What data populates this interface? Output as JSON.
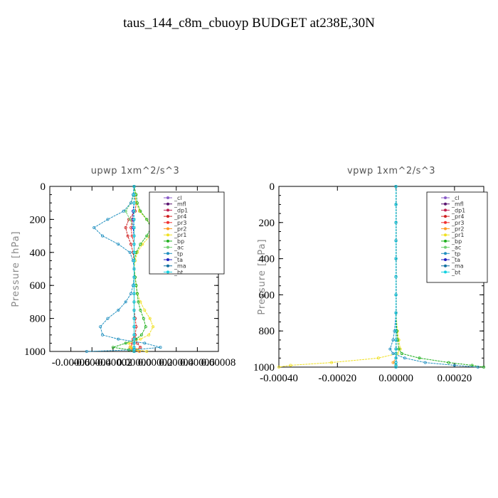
{
  "figure": {
    "title": "taus_144_c8m_cbuoyp  BUDGET at238E,30N"
  },
  "chart_data": [
    {
      "type": "line",
      "title": "upwp   1xm^2/s^3",
      "xlabel": "",
      "ylabel": "Pressure [hPa]",
      "xlim": [
        -8e-05,
        8e-05
      ],
      "ylim": [
        1000,
        0
      ],
      "x_ticks": [
        "-0.00006",
        "-0.00004",
        "-0.00002",
        "0.00000",
        "0.00002",
        "0.00004",
        "0.00006",
        "0.00008"
      ],
      "y_ticks": [
        "0",
        "200",
        "400",
        "600",
        "800",
        "1000"
      ],
      "legend_position": "top-right",
      "y": [
        0,
        50,
        100,
        150,
        200,
        250,
        300,
        350,
        400,
        450,
        500,
        550,
        600,
        650,
        700,
        750,
        800,
        850,
        900,
        925,
        950,
        975,
        990,
        1000
      ],
      "series": [
        {
          "name": "_cl",
          "color": "#8a5cc8",
          "values": [
            0,
            0,
            0,
            0,
            0,
            0,
            0,
            0,
            0,
            0,
            0,
            0,
            0,
            0,
            0,
            0,
            0,
            0,
            0,
            0,
            0,
            0,
            0,
            0
          ]
        },
        {
          "name": "_mfl",
          "color": "#5a1470",
          "values": [
            0,
            0,
            0,
            0,
            0,
            0,
            0,
            0,
            0,
            0,
            0,
            0,
            0,
            0,
            0,
            0,
            0,
            0,
            0,
            0,
            0,
            0,
            0,
            0
          ]
        },
        {
          "name": "_dp1",
          "color": "#c02050",
          "values": [
            0,
            0,
            0,
            0,
            0,
            0,
            0,
            0,
            0,
            0,
            0,
            0,
            0,
            0,
            0,
            0,
            0,
            0,
            0,
            0,
            0,
            0,
            0,
            0
          ]
        },
        {
          "name": "_pr4",
          "color": "#d02020",
          "values": [
            0,
            0,
            2e-06,
            1e-06,
            -5e-06,
            -8e-06,
            -6e-06,
            -3e-06,
            -1e-06,
            0,
            0,
            0,
            0,
            0,
            0,
            0,
            1e-06,
            2e-06,
            1e-06,
            1e-06,
            3e-06,
            6e-06,
            2e-06,
            0
          ]
        },
        {
          "name": "_pr3",
          "color": "#f03030",
          "values": [
            0,
            0,
            0,
            0,
            -2e-06,
            -3e-06,
            -2e-06,
            0,
            0,
            0,
            0,
            0,
            0,
            0,
            0,
            0,
            0,
            0,
            0,
            -1e-06,
            -2e-06,
            -3e-06,
            -1e-06,
            0
          ]
        },
        {
          "name": "_pr2",
          "color": "#ff9a20",
          "values": [
            0,
            0,
            0,
            0,
            0,
            0,
            0,
            0,
            0,
            0,
            0,
            0,
            0,
            0,
            0,
            0,
            0,
            0,
            0,
            0,
            0,
            -4e-06,
            -2e-06,
            5e-06
          ]
        },
        {
          "name": "_pr1",
          "color": "#f0e020",
          "values": [
            0,
            1e-06,
            2e-06,
            5e-06,
            1.2e-05,
            1.8e-05,
            1.5e-05,
            8e-06,
            3e-06,
            1e-06,
            0,
            1e-06,
            2e-06,
            3e-06,
            6e-06,
            1e-05,
            1.5e-05,
            1.8e-05,
            1.4e-05,
            6e-06,
            -5e-06,
            -3e-06,
            3e-06,
            1.2e-05
          ]
        },
        {
          "name": "_bp",
          "color": "#20b020",
          "values": [
            0,
            2e-06,
            3e-06,
            6e-06,
            1.2e-05,
            1.6e-05,
            1.2e-05,
            6e-06,
            2e-06,
            0,
            0,
            1e-06,
            2e-06,
            3e-06,
            4e-06,
            6e-06,
            9e-06,
            1.1e-05,
            7e-06,
            2e-06,
            -8e-06,
            -2e-05,
            -5e-06,
            0
          ]
        },
        {
          "name": "_ac",
          "color": "#70d070",
          "values": [
            0,
            0,
            -3e-06,
            -8e-06,
            -4e-06,
            0,
            0,
            0,
            0,
            0,
            0,
            0,
            0,
            0,
            0,
            0,
            0,
            0,
            0,
            0,
            0,
            0,
            0,
            0
          ]
        },
        {
          "name": "_tp",
          "color": "#2090c0",
          "values": [
            0,
            -1e-06,
            -3e-06,
            -1e-05,
            -2.5e-05,
            -3.8e-05,
            -3e-05,
            -1.5e-05,
            -4e-06,
            -1e-06,
            0,
            0,
            -1e-06,
            -3e-06,
            -8e-06,
            -1.5e-05,
            -2.5e-05,
            -3.2e-05,
            -3e-05,
            -1.5e-05,
            1e-05,
            2.5e-05,
            0,
            -4.5e-05
          ]
        },
        {
          "name": "_ta",
          "color": "#2020c0",
          "values": [
            0,
            0,
            0,
            -1e-06,
            -1e-06,
            -1e-06,
            0,
            0,
            0,
            0,
            0,
            0,
            0,
            0,
            0,
            0,
            0,
            0,
            0,
            0,
            0,
            0,
            0,
            0
          ]
        },
        {
          "name": "_ma",
          "color": "#1070a0",
          "values": [
            0,
            0,
            0,
            0,
            0,
            0,
            0,
            0,
            0,
            0,
            0,
            0,
            0,
            0,
            0,
            0,
            0,
            0,
            0,
            0,
            0,
            0,
            0,
            0
          ]
        },
        {
          "name": "_bt",
          "color": "#10d0e0",
          "values": [
            0,
            0,
            0,
            0,
            0,
            0,
            0,
            0,
            0,
            0,
            0,
            0,
            0,
            0,
            0,
            0,
            0,
            0,
            0,
            0,
            0,
            0,
            0,
            0
          ]
        }
      ]
    },
    {
      "type": "line",
      "title": "vpwp   1xm^2/s^3",
      "xlabel": "",
      "ylabel": "Pressure [hPa]",
      "xlim": [
        -0.0004,
        0.0003
      ],
      "ylim": [
        1000,
        0
      ],
      "x_ticks": [
        "-0.00040",
        "-0.00020",
        "0.00000",
        "0.00020"
      ],
      "y_ticks": [
        "0",
        "200",
        "400",
        "600",
        "800",
        "1000"
      ],
      "legend_position": "top-right",
      "y": [
        0,
        100,
        200,
        300,
        400,
        500,
        600,
        700,
        800,
        850,
        900,
        925,
        950,
        975,
        990,
        1000
      ],
      "series": [
        {
          "name": "_cl",
          "color": "#8a5cc8",
          "values": [
            0,
            0,
            0,
            0,
            0,
            0,
            0,
            0,
            0,
            0,
            0,
            0,
            0,
            0,
            0,
            0
          ]
        },
        {
          "name": "_mfl",
          "color": "#5a1470",
          "values": [
            0,
            0,
            0,
            0,
            0,
            0,
            0,
            0,
            0,
            0,
            0,
            0,
            0,
            0,
            0,
            0
          ]
        },
        {
          "name": "_dp1",
          "color": "#c02050",
          "values": [
            0,
            0,
            0,
            0,
            0,
            0,
            0,
            0,
            0,
            0,
            0,
            0,
            0,
            0,
            0,
            0
          ]
        },
        {
          "name": "_pr4",
          "color": "#d02020",
          "values": [
            0,
            0,
            0,
            0,
            0,
            0,
            0,
            0,
            0,
            0,
            0,
            0,
            0,
            0,
            0,
            0
          ]
        },
        {
          "name": "_pr3",
          "color": "#f03030",
          "values": [
            0,
            0,
            0,
            0,
            0,
            0,
            0,
            0,
            0,
            0,
            0,
            0,
            0,
            0,
            0,
            0
          ]
        },
        {
          "name": "_pr2",
          "color": "#ff9a20",
          "values": [
            0,
            0,
            0,
            0,
            0,
            0,
            0,
            0,
            0,
            0,
            0,
            0,
            0,
            -1e-05,
            0,
            0
          ]
        },
        {
          "name": "_pr1",
          "color": "#f0e020",
          "values": [
            0,
            0,
            0,
            0,
            0,
            0,
            0,
            0,
            5e-06,
            1e-05,
            1.5e-05,
            5e-06,
            -6e-05,
            -0.00022,
            -0.00036,
            -0.0004
          ]
        },
        {
          "name": "_bp",
          "color": "#20b020",
          "values": [
            0,
            0,
            0,
            0,
            0,
            0,
            0,
            0,
            3e-06,
            6e-06,
            1e-05,
            2e-05,
            8e-05,
            0.00018,
            0.00026,
            0.0003
          ]
        },
        {
          "name": "_ac",
          "color": "#70d070",
          "values": [
            0,
            0,
            0,
            0,
            0,
            0,
            0,
            0,
            0,
            0,
            0,
            0,
            0,
            0,
            0,
            0
          ]
        },
        {
          "name": "_tp",
          "color": "#2090c0",
          "values": [
            0,
            0,
            0,
            0,
            0,
            0,
            0,
            0,
            -5e-06,
            -1e-05,
            -2e-05,
            -1e-05,
            3e-05,
            0.0001,
            0.0002,
            0.00028
          ]
        },
        {
          "name": "_ta",
          "color": "#2020c0",
          "values": [
            0,
            0,
            0,
            0,
            0,
            0,
            0,
            0,
            0,
            0,
            0,
            0,
            0,
            0,
            0,
            0
          ]
        },
        {
          "name": "_ma",
          "color": "#1070a0",
          "values": [
            0,
            0,
            0,
            0,
            0,
            0,
            0,
            0,
            0,
            0,
            0,
            0,
            0,
            0,
            0,
            0
          ]
        },
        {
          "name": "_bt",
          "color": "#10d0e0",
          "values": [
            0,
            0,
            0,
            0,
            0,
            0,
            0,
            0,
            0,
            0,
            0,
            0,
            0,
            0,
            0,
            0
          ]
        }
      ]
    }
  ]
}
